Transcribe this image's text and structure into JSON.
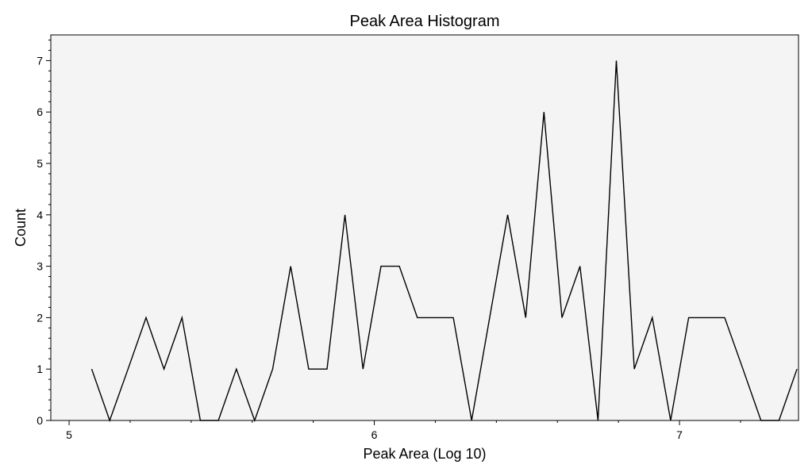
{
  "chart_data": {
    "type": "line",
    "title": "Peak Area Histogram",
    "xlabel": "Peak Area (Log 10)",
    "ylabel": "Count",
    "xlim": [
      4.94,
      7.39
    ],
    "ylim": [
      0,
      7.5
    ],
    "xticks": [
      5,
      6,
      7
    ],
    "yticks": [
      0,
      1,
      2,
      3,
      4,
      5,
      6,
      7
    ],
    "grid": false,
    "background": "#f4f4f4",
    "line_color": "#000000",
    "series": [
      {
        "x": [
          5.074,
          5.133,
          5.193,
          5.252,
          5.311,
          5.37,
          5.43,
          5.489,
          5.548,
          5.608,
          5.667,
          5.726,
          5.785,
          5.845,
          5.904,
          5.963,
          6.022,
          6.082,
          6.141,
          6.2,
          6.259,
          6.319,
          6.378,
          6.437,
          6.496,
          6.556,
          6.615,
          6.674,
          6.733,
          6.793,
          6.852,
          6.911,
          6.971,
          7.03,
          7.089,
          7.148,
          7.208,
          7.267,
          7.326,
          7.385
        ],
        "values": [
          1,
          0,
          1,
          2,
          1,
          2,
          0,
          0,
          1,
          0,
          1,
          3,
          1,
          1,
          4,
          1,
          3,
          3,
          2,
          2,
          2,
          0,
          2,
          4,
          2,
          6,
          2,
          3,
          0,
          7,
          1,
          2,
          0,
          2,
          2,
          2,
          1,
          0,
          0,
          1
        ]
      }
    ]
  }
}
